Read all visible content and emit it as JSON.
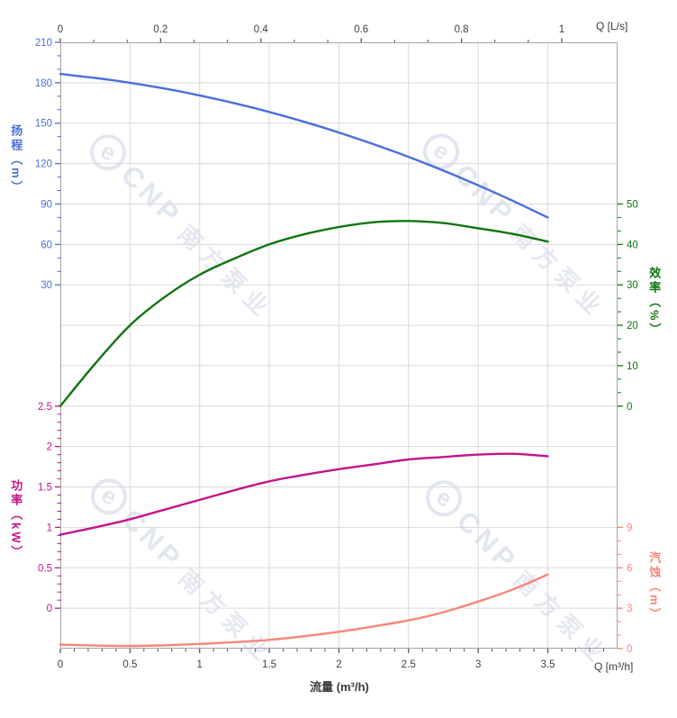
{
  "watermark": {
    "logo_glyph": "e",
    "brand": "CNP",
    "text": "南方泵业"
  },
  "labels": {
    "top_corner": "Q [L/s]",
    "bottom_corner": "Q [m³/h]",
    "bottom_axis_title": "流量 (m³/h)",
    "head_axis_title": "扬程（m）",
    "power_axis_title": "功率（kW）",
    "eff_axis_title": "效率（%）",
    "npsh_axis_title": "汽蚀（m）"
  },
  "chart_data": {
    "type": "line",
    "title": "",
    "xlabel": "流量 (m³/h)",
    "x_top_unit": "Q [L/s]",
    "x_values_m3h": [
      0,
      0.25,
      0.5,
      0.75,
      1.0,
      1.25,
      1.5,
      1.75,
      2.0,
      2.25,
      2.5,
      2.75,
      3.0,
      3.25,
      3.5
    ],
    "series": [
      {
        "name": "扬程",
        "unit": "m",
        "axis": "head",
        "color": "#4a6fdc",
        "values": [
          186.5,
          183.6,
          180.0,
          175.7,
          170.6,
          164.8,
          158.3,
          151.0,
          143.1,
          134.4,
          125.0,
          114.8,
          103.9,
          92.3,
          80.0
        ]
      },
      {
        "name": "效率",
        "unit": "%",
        "axis": "eff",
        "color": "#0e750e",
        "values": [
          0,
          10.5,
          20.0,
          27.0,
          32.5,
          36.5,
          40.0,
          42.5,
          44.3,
          45.5,
          45.8,
          45.3,
          44.0,
          42.6,
          40.7
        ]
      },
      {
        "name": "功率",
        "unit": "kW",
        "axis": "power",
        "color": "#c4138a",
        "values": [
          0.91,
          1.0,
          1.1,
          1.22,
          1.34,
          1.46,
          1.57,
          1.65,
          1.72,
          1.78,
          1.84,
          1.87,
          1.9,
          1.91,
          1.88
        ]
      },
      {
        "name": "汽蚀",
        "unit": "m",
        "axis": "npsh",
        "color": "#f8867a",
        "values": [
          0.3,
          0.23,
          0.2,
          0.25,
          0.35,
          0.48,
          0.65,
          0.92,
          1.25,
          1.65,
          2.1,
          2.7,
          3.5,
          4.4,
          5.5
        ]
      }
    ],
    "axes": {
      "top": {
        "label": "Q [L/s]",
        "tick_labels": [
          "0",
          "0.2",
          "0.4",
          "0.6",
          "0.8",
          "1"
        ],
        "tick_values": [
          0,
          0.2,
          0.4,
          0.6,
          0.8,
          1
        ],
        "range_Ls": [
          0,
          1.11
        ],
        "color": "#404040"
      },
      "bottom": {
        "label": "流量 (m³/h)",
        "corner_label": "Q [m³/h]",
        "tick_labels": [
          "0",
          "0.5",
          "1",
          "1.5",
          "2",
          "2.5",
          "3",
          "3.5"
        ],
        "tick_values": [
          0,
          0.5,
          1,
          1.5,
          2,
          2.5,
          3,
          3.5
        ],
        "range_m3h": [
          0,
          4.0
        ],
        "color": "#404040"
      },
      "head": {
        "label": "扬程（m）",
        "ticks": [
          210,
          180,
          150,
          120,
          90,
          60,
          30
        ],
        "color": "#4a6fdc"
      },
      "power": {
        "label": "功率（kW）",
        "ticks": [
          2.5,
          2,
          1.5,
          1,
          0.5,
          0
        ],
        "color": "#c4138a"
      },
      "eff": {
        "label": "效率（%）",
        "ticks": [
          50,
          40,
          30,
          20,
          10,
          0
        ],
        "color": "#0e750e"
      },
      "npsh": {
        "label": "汽蚀（m）",
        "ticks": [
          9,
          6,
          3,
          0
        ],
        "color": "#f8867a"
      }
    },
    "grid": {
      "x_step_m3h": 0.5,
      "color": "#d9d9d9",
      "border_color": "#a3a3a3"
    }
  }
}
